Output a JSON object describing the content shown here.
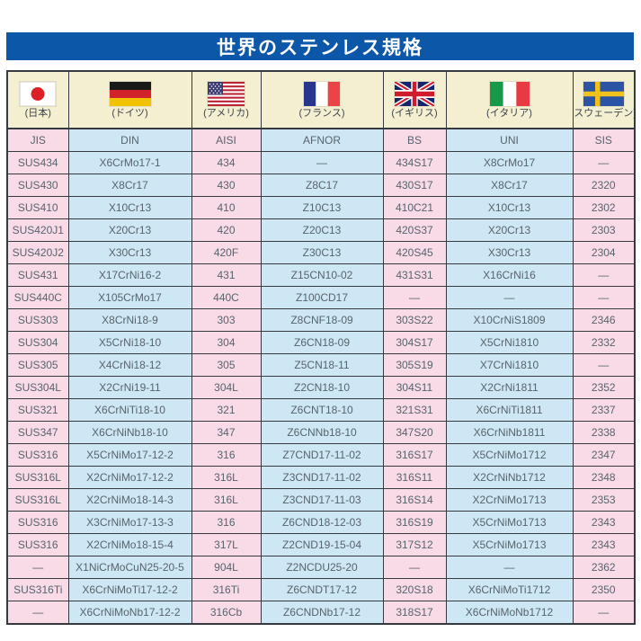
{
  "title": "世界のステンレス規格",
  "colors": {
    "banner_blue": "#0d57a8",
    "pink": "#f9dbe7",
    "light_blue": "#cde8f4",
    "cream": "#f5efd1",
    "border": "#343a40",
    "text": "#57636d"
  },
  "header": {
    "countries": [
      {
        "label": "(日本)",
        "flag": "japan-flag-icon"
      },
      {
        "label": "(ドイツ)",
        "flag": "germany-flag-icon"
      },
      {
        "label": "(アメリカ)",
        "flag": "usa-flag-icon"
      },
      {
        "label": "(フランス)",
        "flag": "france-flag-icon"
      },
      {
        "label": "(イギリス)",
        "flag": "uk-flag-icon"
      },
      {
        "label": "(イタリア)",
        "flag": "italy-flag-icon"
      },
      {
        "label": "(スウェーデン)",
        "flag": "sweden-flag-icon"
      }
    ],
    "standards": [
      "JIS",
      "DIN",
      "AISI",
      "AFNOR",
      "BS",
      "UNI",
      "SIS"
    ]
  },
  "chart_data": {
    "type": "table",
    "title": "世界のステンレス規格",
    "columns": [
      "JIS",
      "DIN",
      "AISI",
      "AFNOR",
      "BS",
      "UNI",
      "SIS"
    ]
  },
  "table": {
    "rows": [
      [
        "SUS434",
        "X6CrMo17-1",
        "434",
        "—",
        "434S17",
        "X8CrMo17",
        "—"
      ],
      [
        "SUS430",
        "X8Cr17",
        "430",
        "Z8C17",
        "430S17",
        "X8Cr17",
        "2320"
      ],
      [
        "SUS410",
        "X10Cr13",
        "410",
        "Z10C13",
        "410C21",
        "X10Cr13",
        "2302"
      ],
      [
        "SUS420J1",
        "X20Cr13",
        "420",
        "Z20C13",
        "420S37",
        "X20Cr13",
        "2303"
      ],
      [
        "SUS420J2",
        "X30Cr13",
        "420F",
        "Z30C13",
        "420S45",
        "X30Cr13",
        "2304"
      ],
      [
        "SUS431",
        "X17CrNi16-2",
        "431",
        "Z15CN10-02",
        "431S31",
        "X16CrNi16",
        "—"
      ],
      [
        "SUS440C",
        "X105CrMo17",
        "440C",
        "Z100CD17",
        "—",
        "—",
        "—"
      ],
      [
        "SUS303",
        "X8CrNi18-9",
        "303",
        "Z8CNF18-09",
        "303S22",
        "X10CrNiS1809",
        "2346"
      ],
      [
        "SUS304",
        "X5CrNi18-10",
        "304",
        "Z6CN18-09",
        "304S17",
        "X5CrNi1810",
        "2332"
      ],
      [
        "SUS305",
        "X4CrNi18-12",
        "305",
        "Z5CN18-11",
        "305S19",
        "X7CrNi1810",
        "—"
      ],
      [
        "SUS304L",
        "X2CrNi19-11",
        "304L",
        "Z2CN18-10",
        "304S11",
        "X2CrNi1811",
        "2352"
      ],
      [
        "SUS321",
        "X6CrNiTi18-10",
        "321",
        "Z6CNT18-10",
        "321S31",
        "X6CrNiTi1811",
        "2337"
      ],
      [
        "SUS347",
        "X6CrNiNb18-10",
        "347",
        "Z6CNNb18-10",
        "347S20",
        "X6CrNiNb1811",
        "2338"
      ],
      [
        "SUS316",
        "X5CrNiMo17-12-2",
        "316",
        "Z7CND17-11-02",
        "316S17",
        "X5CrNiMo1712",
        "2347"
      ],
      [
        "SUS316L",
        "X2CrNiMo17-12-2",
        "316L",
        "Z3CND17-11-02",
        "316S11",
        "X2CrNiNb1712",
        "2348"
      ],
      [
        "SUS316L",
        "X2CrNiMo18-14-3",
        "316L",
        "Z3CND17-11-03",
        "316S14",
        "X2CrNiMo1713",
        "2353"
      ],
      [
        "SUS316",
        "X3CrNiMo17-13-3",
        "316",
        "Z6CND18-12-03",
        "316S19",
        "X5CrNiMo1713",
        "2343"
      ],
      [
        "SUS316",
        "X2CrNiMo18-15-4",
        "317L",
        "Z2CND19-15-04",
        "317S12",
        "X5CrNiMo1713",
        "2343"
      ],
      [
        "—",
        "X1NiCrMoCuN25-20-5",
        "904L",
        "Z2NCDU25-20",
        "—",
        "—",
        "2362"
      ],
      [
        "SUS316Ti",
        "X6CrNiMoTi17-12-2",
        "316Ti",
        "Z6CNDT17-12",
        "320S18",
        "X6CrNiMoTi1712",
        "2350"
      ],
      [
        "—",
        "X6CrNiMoNb17-12-2",
        "316Cb",
        "Z6CNDNb17-12",
        "318S17",
        "X6CrNiMoNb1712",
        "—"
      ]
    ]
  }
}
